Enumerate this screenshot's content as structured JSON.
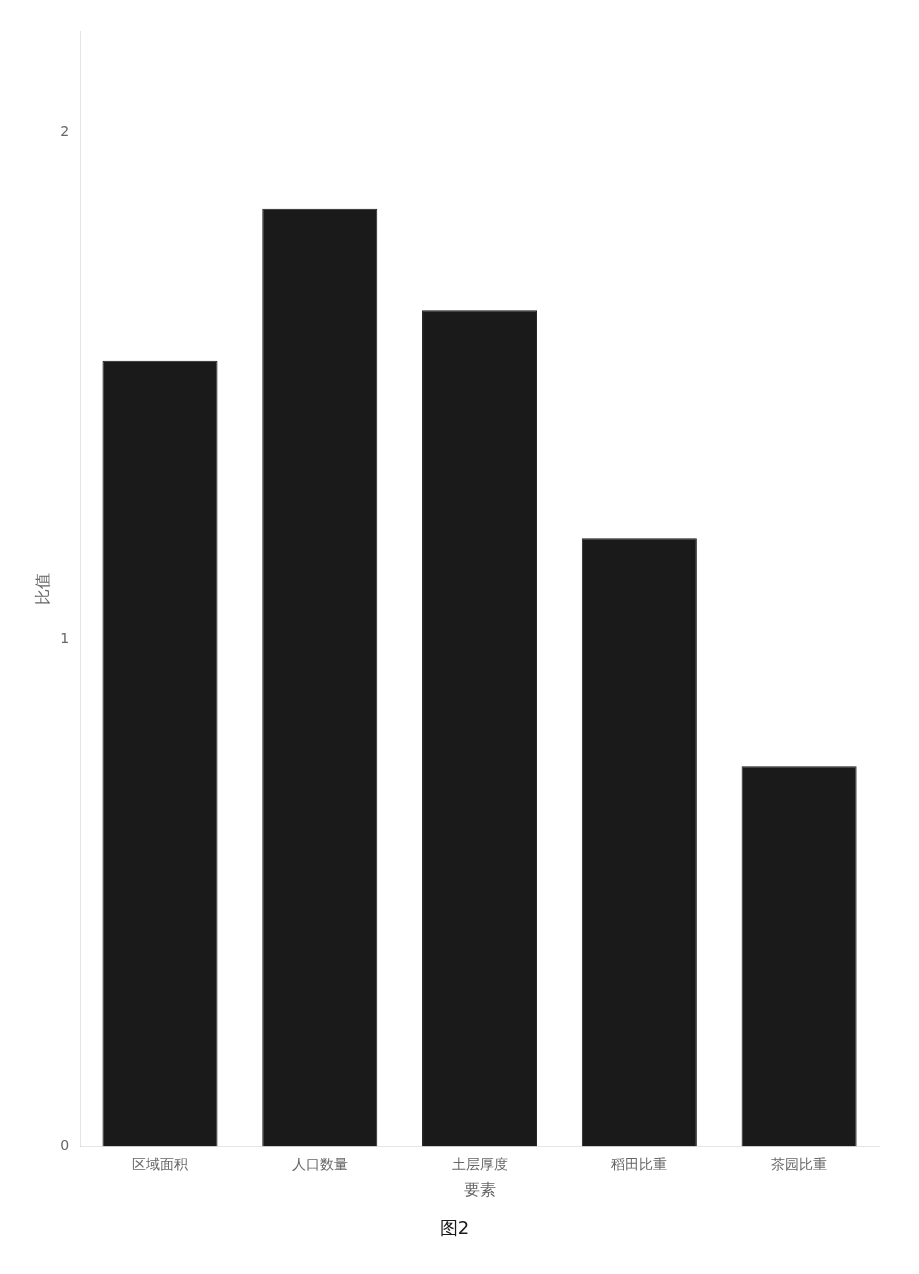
{
  "chart_data": {
    "type": "bar",
    "title": "图2",
    "categories": [
      "区域面积",
      "人口数量",
      "土层厚度",
      "稻田比重",
      "茶园比重"
    ],
    "values": [
      1.55,
      1.85,
      1.65,
      1.2,
      0.75
    ],
    "color": "#1a1a1a",
    "xlabel": "要素",
    "ylabel": "比值",
    "ylim": [
      0,
      2.2
    ],
    "yticks": [
      0,
      1,
      2
    ],
    "grid": false
  }
}
